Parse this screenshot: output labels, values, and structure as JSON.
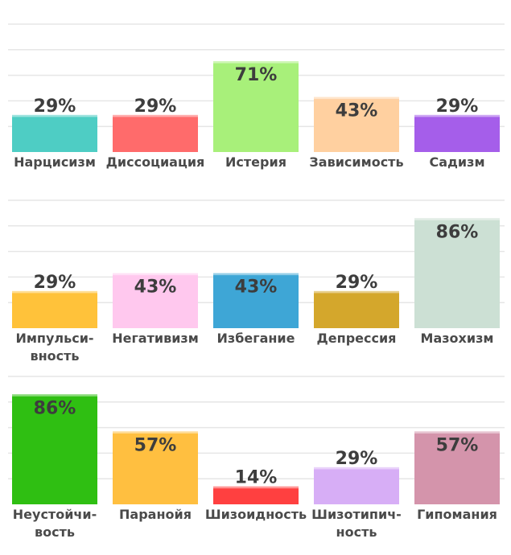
{
  "chart_data": [
    {
      "type": "bar",
      "categories": [
        "Нарцисизм",
        "Диссоциация",
        "Истерия",
        "Зависимость",
        "Садизм"
      ],
      "category_lines": [
        [
          "Нарцисизм"
        ],
        [
          "Диссоциация"
        ],
        [
          "Истерия"
        ],
        [
          "Зависимость"
        ],
        [
          "Садизм"
        ]
      ],
      "values": [
        29,
        29,
        71,
        43,
        29
      ],
      "value_labels": [
        "29%",
        "29%",
        "71%",
        "43%",
        "29%"
      ],
      "colors": [
        "#4ecdc4",
        "#ff6b6b",
        "#a8f07a",
        "#ffd0a0",
        "#a55eea"
      ],
      "ylim": [
        0,
        100
      ],
      "grid": true
    },
    {
      "type": "bar",
      "categories": [
        "Импульсивность",
        "Негативизм",
        "Избегание",
        "Депрессия",
        "Мазохизм"
      ],
      "category_lines": [
        [
          "Импульси-",
          "вность"
        ],
        [
          "Негативизм"
        ],
        [
          "Избегание"
        ],
        [
          "Депрессия"
        ],
        [
          "Мазохизм"
        ]
      ],
      "values": [
        29,
        43,
        43,
        29,
        86
      ],
      "value_labels": [
        "29%",
        "43%",
        "43%",
        "29%",
        "86%"
      ],
      "colors": [
        "#ffc23a",
        "#ffc8ee",
        "#3ea6d6",
        "#d4a72c",
        "#cce0d4"
      ],
      "ylim": [
        0,
        100
      ],
      "grid": true
    },
    {
      "type": "bar",
      "categories": [
        "Неустойчивость",
        "Паранойя",
        "Шизоидность",
        "Шизотипичность",
        "Гипомания"
      ],
      "category_lines": [
        [
          "Неустойчи-",
          "вость"
        ],
        [
          "Паранойя"
        ],
        [
          "Шизоидность"
        ],
        [
          "Шизотипич-",
          "ность"
        ],
        [
          "Гипомания"
        ]
      ],
      "values": [
        86,
        57,
        14,
        29,
        57
      ],
      "value_labels": [
        "86%",
        "57%",
        "14%",
        "29%",
        "57%"
      ],
      "colors": [
        "#2fbf12",
        "#ffbf40",
        "#ff4040",
        "#d7aef6",
        "#d494ab"
      ],
      "ylim": [
        0,
        100
      ],
      "grid": true
    }
  ]
}
